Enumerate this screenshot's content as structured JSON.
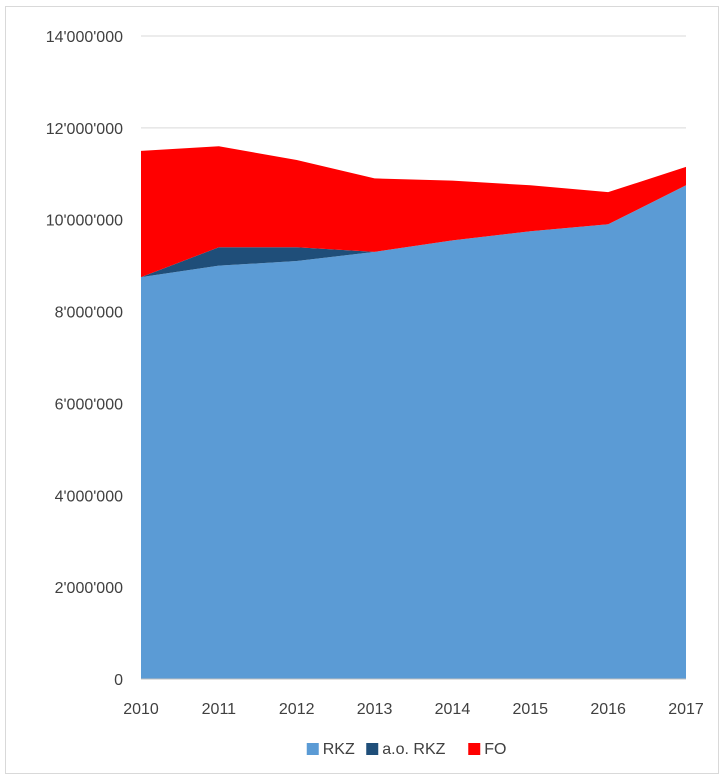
{
  "chart_data": {
    "type": "area",
    "stacked": true,
    "categories": [
      "2010",
      "2011",
      "2012",
      "2013",
      "2014",
      "2015",
      "2016",
      "2017"
    ],
    "series": [
      {
        "name": "RKZ",
        "color": "#5b9bd5",
        "values": [
          8750000,
          9000000,
          9100000,
          9300000,
          9550000,
          9750000,
          9900000,
          10750000
        ]
      },
      {
        "name": "a.o. RKZ",
        "color": "#1f4e79",
        "values": [
          0,
          400000,
          300000,
          0,
          0,
          0,
          0,
          0
        ]
      },
      {
        "name": "FO",
        "color": "#ff0000",
        "values": [
          2750000,
          2200000,
          1900000,
          1600000,
          1300000,
          1000000,
          700000,
          400000
        ]
      }
    ],
    "ylim": [
      0,
      14000000
    ],
    "yticks": [
      0,
      2000000,
      4000000,
      6000000,
      8000000,
      10000000,
      12000000,
      14000000
    ],
    "ytick_labels": [
      "0",
      "2'000'000",
      "4'000'000",
      "6'000'000",
      "8'000'000",
      "10'000'000",
      "12'000'000",
      "14'000'000"
    ],
    "grid": true,
    "legend_position": "bottom"
  }
}
